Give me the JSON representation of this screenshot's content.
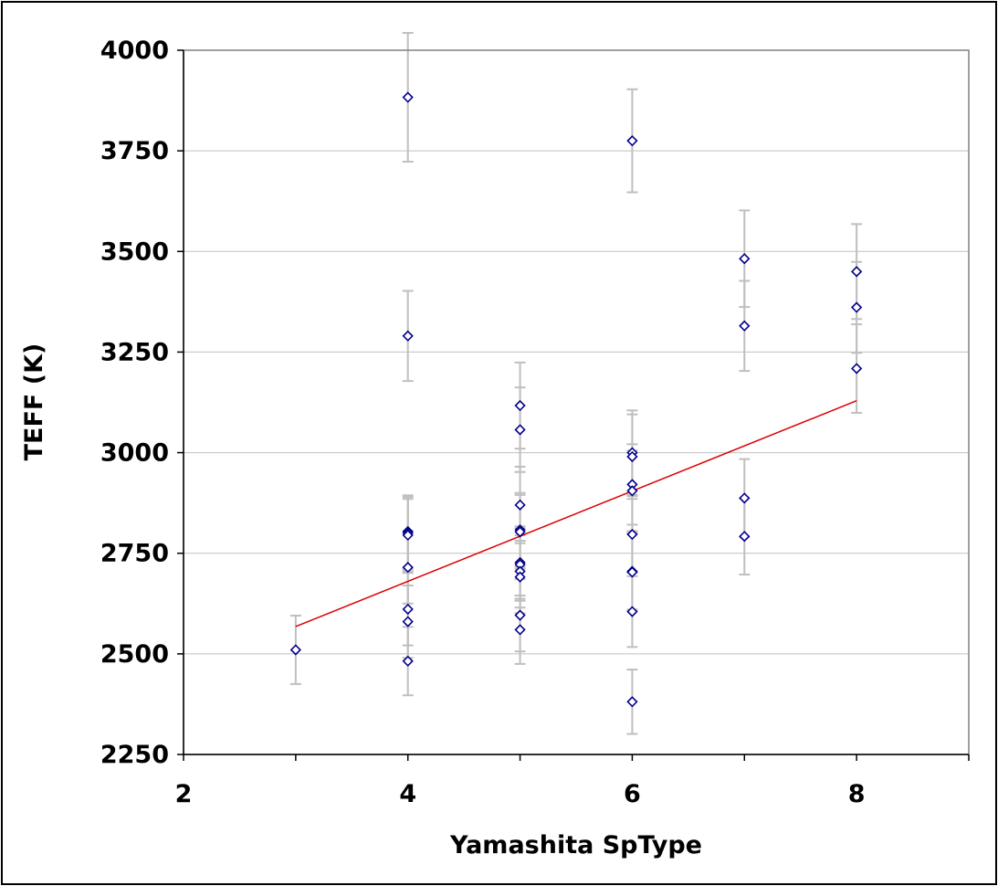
{
  "chart_data": {
    "type": "scatter",
    "xlabel": "Yamashita SpType",
    "ylabel": "TEFF (K)",
    "xlim": [
      2,
      9
    ],
    "ylim": [
      2250,
      4000
    ],
    "x_ticks": [
      2,
      4,
      6,
      8
    ],
    "y_ticks": [
      2250,
      2500,
      2750,
      3000,
      3250,
      3500,
      3750,
      4000
    ],
    "grid": "horizontal",
    "legend": "none",
    "colors": {
      "points": "#00008b",
      "fit": "#dd0000",
      "error_bars": "#bfbfbf",
      "grid": "#c0c0c0"
    },
    "points": [
      {
        "x": 3,
        "y": 2510,
        "err": 85
      },
      {
        "x": 4,
        "y": 3883,
        "err": 160
      },
      {
        "x": 4,
        "y": 3290,
        "err": 112
      },
      {
        "x": 4,
        "y": 2804,
        "err": 90
      },
      {
        "x": 4,
        "y": 2800,
        "err": 90
      },
      {
        "x": 4,
        "y": 2795,
        "err": 90
      },
      {
        "x": 4,
        "y": 2715,
        "err": 90
      },
      {
        "x": 4,
        "y": 2611,
        "err": 90
      },
      {
        "x": 4,
        "y": 2580,
        "err": 90
      },
      {
        "x": 4,
        "y": 2482,
        "err": 85
      },
      {
        "x": 5,
        "y": 3117,
        "err": 107
      },
      {
        "x": 5,
        "y": 3057,
        "err": 105
      },
      {
        "x": 5,
        "y": 2870,
        "err": 95
      },
      {
        "x": 5,
        "y": 2808,
        "err": 92
      },
      {
        "x": 5,
        "y": 2803,
        "err": 92
      },
      {
        "x": 5,
        "y": 2727,
        "err": 90
      },
      {
        "x": 5,
        "y": 2722,
        "err": 90
      },
      {
        "x": 5,
        "y": 2705,
        "err": 90
      },
      {
        "x": 5,
        "y": 2691,
        "err": 90
      },
      {
        "x": 5,
        "y": 2596,
        "err": 90
      },
      {
        "x": 5,
        "y": 2560,
        "err": 85
      },
      {
        "x": 6,
        "y": 3775,
        "err": 128
      },
      {
        "x": 6,
        "y": 3000,
        "err": 105
      },
      {
        "x": 6,
        "y": 2990,
        "err": 105
      },
      {
        "x": 6,
        "y": 2921,
        "err": 100
      },
      {
        "x": 6,
        "y": 2905,
        "err": 100
      },
      {
        "x": 6,
        "y": 2797,
        "err": 95
      },
      {
        "x": 6,
        "y": 2705,
        "err": 95
      },
      {
        "x": 6,
        "y": 2703,
        "err": 95
      },
      {
        "x": 6,
        "y": 2605,
        "err": 88
      },
      {
        "x": 6,
        "y": 2381,
        "err": 80
      },
      {
        "x": 7,
        "y": 3482,
        "err": 120
      },
      {
        "x": 7,
        "y": 3315,
        "err": 112
      },
      {
        "x": 7,
        "y": 2887,
        "err": 97
      },
      {
        "x": 7,
        "y": 2792,
        "err": 95
      },
      {
        "x": 8,
        "y": 3450,
        "err": 118
      },
      {
        "x": 8,
        "y": 3361,
        "err": 113
      },
      {
        "x": 8,
        "y": 3209,
        "err": 110
      }
    ],
    "fit_line": {
      "x": [
        3,
        8
      ],
      "y": [
        2568,
        3129
      ]
    }
  }
}
